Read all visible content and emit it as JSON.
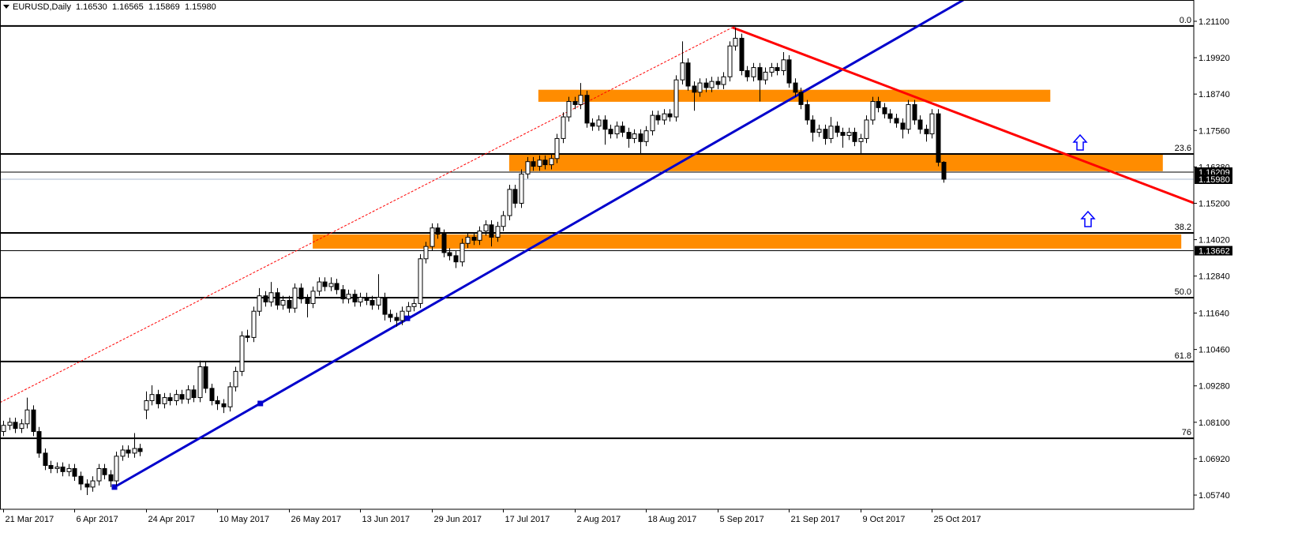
{
  "chart_data": {
    "type": "candlestick",
    "header": {
      "symbol": "EURUSD,Daily",
      "ohlc": [
        "1.16530",
        "1.16565",
        "1.15869",
        "1.15980"
      ]
    },
    "xlim": [
      -0.53,
      200
    ],
    "ylim": [
      1.0528,
      1.2179
    ],
    "xticks": [
      {
        "value": 0,
        "label": "21 Mar 2017"
      },
      {
        "value": 12,
        "label": "6 Apr 2017"
      },
      {
        "value": 24,
        "label": "24 Apr 2017"
      },
      {
        "value": 36,
        "label": "10 May 2017"
      },
      {
        "value": 48,
        "label": "26 May 2017"
      },
      {
        "value": 60,
        "label": "13 Jun 2017"
      },
      {
        "value": 72,
        "label": "29 Jun 2017"
      },
      {
        "value": 84,
        "label": "17 Jul 2017"
      },
      {
        "value": 96,
        "label": "2 Aug 2017"
      },
      {
        "value": 108,
        "label": "18 Aug 2017"
      },
      {
        "value": 120,
        "label": "5 Sep 2017"
      },
      {
        "value": 132,
        "label": "21 Sep 2017"
      },
      {
        "value": 144,
        "label": "9 Oct 2017"
      },
      {
        "value": 156,
        "label": "25 Oct 2017"
      }
    ],
    "yticks": [
      {
        "value": 1.211,
        "label": "1.21100"
      },
      {
        "value": 1.1992,
        "label": "1.19920"
      },
      {
        "value": 1.1874,
        "label": "1.18740"
      },
      {
        "value": 1.1756,
        "label": "1.17560"
      },
      {
        "value": 1.1638,
        "label": "1.16380"
      },
      {
        "value": 1.152,
        "label": "1.15200"
      },
      {
        "value": 1.1402,
        "label": "1.14020"
      },
      {
        "value": 1.1284,
        "label": "1.12840"
      },
      {
        "value": 1.1164,
        "label": "1.11640"
      },
      {
        "value": 1.1046,
        "label": "1.10460"
      },
      {
        "value": 1.0928,
        "label": "1.09280"
      },
      {
        "value": 1.081,
        "label": "1.08100"
      },
      {
        "value": 1.0692,
        "label": "1.06920"
      },
      {
        "value": 1.0574,
        "label": "1.05740"
      }
    ],
    "open": [
      1.078,
      1.08,
      1.081,
      1.079,
      1.0805,
      1.085,
      1.078,
      1.071,
      1.067,
      1.066,
      1.0665,
      1.065,
      1.066,
      1.0635,
      1.061,
      1.06,
      1.062,
      1.066,
      1.064,
      1.062,
      1.07,
      1.072,
      1.071,
      1.0725,
      1.085,
      1.088,
      1.09,
      1.087,
      1.089,
      1.088,
      1.09,
      1.0885,
      1.0915,
      1.089,
      1.099,
      1.092,
      1.088,
      1.087,
      1.086,
      1.0925,
      1.0975,
      1.109,
      1.1085,
      1.117,
      1.122,
      1.12,
      1.123,
      1.119,
      1.1205,
      1.118,
      1.1245,
      1.121,
      1.1195,
      1.1235,
      1.1265,
      1.125,
      1.126,
      1.124,
      1.121,
      1.1225,
      1.12,
      1.1215,
      1.1205,
      1.119,
      1.1215,
      1.116,
      1.115,
      1.114,
      1.117,
      1.1185,
      1.1195,
      1.134,
      1.138,
      1.144,
      1.142,
      1.136,
      1.135,
      1.133,
      1.139,
      1.141,
      1.14,
      1.143,
      1.145,
      1.141,
      1.1445,
      1.148,
      1.1565,
      1.152,
      1.1615,
      1.1655,
      1.164,
      1.166,
      1.1645,
      1.1665,
      1.173,
      1.18,
      1.185,
      1.184,
      1.187,
      1.178,
      1.177,
      1.179,
      1.176,
      1.1745,
      1.177,
      1.175,
      1.173,
      1.1745,
      1.172,
      1.1755,
      1.1805,
      1.179,
      1.181,
      1.18,
      1.192,
      1.1975,
      1.19,
      1.188,
      1.191,
      1.1895,
      1.1915,
      1.1905,
      1.193,
      1.203,
      1.2055,
      1.195,
      1.193,
      1.196,
      1.192,
      1.1945,
      1.196,
      1.195,
      1.1985,
      1.191,
      1.188,
      1.184,
      1.179,
      1.175,
      1.176,
      1.173,
      1.177,
      1.175,
      1.174,
      1.175,
      1.172,
      1.173,
      1.179,
      1.185,
      1.183,
      1.181,
      1.1795,
      1.178,
      1.176,
      1.184,
      1.179,
      1.176,
      1.1745,
      1.181,
      1.1653
    ],
    "high": [
      1.0815,
      1.0825,
      1.0825,
      1.082,
      1.089,
      1.0865,
      1.0795,
      1.0725,
      1.0685,
      1.068,
      1.068,
      1.0675,
      1.0675,
      1.065,
      1.0625,
      1.0635,
      1.0675,
      1.0675,
      1.0655,
      1.0715,
      1.0735,
      1.0735,
      1.0775,
      1.074,
      1.091,
      1.093,
      1.0915,
      1.0905,
      1.0905,
      1.0915,
      1.0915,
      1.093,
      1.093,
      1.101,
      1.1005,
      1.0935,
      1.0895,
      1.0885,
      1.094,
      1.099,
      1.1105,
      1.111,
      1.1185,
      1.1245,
      1.1235,
      1.1265,
      1.1245,
      1.122,
      1.122,
      1.126,
      1.126,
      1.1225,
      1.125,
      1.128,
      1.128,
      1.128,
      1.1275,
      1.1255,
      1.124,
      1.124,
      1.123,
      1.123,
      1.122,
      1.129,
      1.123,
      1.1175,
      1.1165,
      1.1185,
      1.12,
      1.121,
      1.1355,
      1.1395,
      1.1455,
      1.1455,
      1.1435,
      1.1375,
      1.1365,
      1.1405,
      1.1425,
      1.1425,
      1.1445,
      1.1465,
      1.1465,
      1.146,
      1.1495,
      1.158,
      1.158,
      1.163,
      1.167,
      1.167,
      1.1675,
      1.1675,
      1.168,
      1.1745,
      1.1815,
      1.1865,
      1.1865,
      1.191,
      1.1885,
      1.1795,
      1.1805,
      1.1805,
      1.1775,
      1.1785,
      1.1785,
      1.1765,
      1.176,
      1.176,
      1.177,
      1.182,
      1.182,
      1.1825,
      1.1825,
      1.1935,
      1.2045,
      1.199,
      1.1915,
      1.1925,
      1.1925,
      1.193,
      1.193,
      1.1945,
      1.2045,
      1.209,
      1.207,
      1.1965,
      1.1975,
      1.1975,
      1.196,
      1.1975,
      1.1975,
      1.201,
      1.2,
      1.1925,
      1.1895,
      1.1855,
      1.1805,
      1.1775,
      1.1775,
      1.18,
      1.1785,
      1.1765,
      1.1765,
      1.1765,
      1.1745,
      1.1805,
      1.1865,
      1.1865,
      1.1845,
      1.1825,
      1.181,
      1.1795,
      1.1855,
      1.1855,
      1.1805,
      1.1775,
      1.1825,
      1.1825,
      1.16565
    ],
    "low": [
      1.0765,
      1.0785,
      1.0775,
      1.0775,
      1.079,
      1.0765,
      1.0695,
      1.0655,
      1.0645,
      1.0645,
      1.0635,
      1.0635,
      1.062,
      1.059,
      1.0574,
      1.0585,
      1.0605,
      1.0625,
      1.06,
      1.0605,
      1.0685,
      1.0695,
      1.0695,
      1.07,
      1.082,
      1.0865,
      1.0855,
      1.0855,
      1.0865,
      1.0865,
      1.087,
      1.087,
      1.0875,
      1.0875,
      1.0905,
      1.0865,
      1.085,
      1.084,
      1.0845,
      1.091,
      1.096,
      1.107,
      1.107,
      1.1155,
      1.1185,
      1.1185,
      1.1175,
      1.1175,
      1.1165,
      1.1165,
      1.1195,
      1.115,
      1.118,
      1.122,
      1.1235,
      1.1235,
      1.1225,
      1.1195,
      1.1195,
      1.1185,
      1.1185,
      1.119,
      1.1175,
      1.1175,
      1.114,
      1.1135,
      1.112,
      1.1125,
      1.1155,
      1.117,
      1.118,
      1.1325,
      1.1365,
      1.1405,
      1.1345,
      1.1335,
      1.131,
      1.1315,
      1.1375,
      1.1385,
      1.1385,
      1.1415,
      1.138,
      1.1395,
      1.143,
      1.1465,
      1.1505,
      1.1505,
      1.16,
      1.1625,
      1.1625,
      1.163,
      1.163,
      1.165,
      1.1715,
      1.1785,
      1.1825,
      1.1825,
      1.1765,
      1.1755,
      1.1755,
      1.171,
      1.173,
      1.173,
      1.1735,
      1.17,
      1.1715,
      1.168,
      1.1705,
      1.174,
      1.1775,
      1.1775,
      1.1785,
      1.1785,
      1.1905,
      1.1885,
      1.182,
      1.1865,
      1.188,
      1.188,
      1.189,
      1.189,
      1.1915,
      1.2015,
      1.1935,
      1.1915,
      1.1915,
      1.185,
      1.1905,
      1.193,
      1.1935,
      1.1935,
      1.1895,
      1.1865,
      1.1825,
      1.1775,
      1.172,
      1.1735,
      1.171,
      1.1715,
      1.1735,
      1.17,
      1.1725,
      1.1705,
      1.168,
      1.1715,
      1.1775,
      1.1815,
      1.1795,
      1.178,
      1.1765,
      1.173,
      1.1745,
      1.1775,
      1.1745,
      1.172,
      1.173,
      1.164,
      1.15869
    ],
    "close": [
      1.08,
      1.081,
      1.079,
      1.0805,
      1.085,
      1.078,
      1.071,
      1.067,
      1.066,
      1.0665,
      1.065,
      1.066,
      1.0635,
      1.061,
      1.06,
      1.062,
      1.066,
      1.064,
      1.062,
      1.07,
      1.072,
      1.071,
      1.0725,
      1.0715,
      1.088,
      1.09,
      1.087,
      1.089,
      1.088,
      1.09,
      1.0885,
      1.0915,
      1.089,
      1.099,
      1.092,
      1.088,
      1.087,
      1.086,
      1.0925,
      1.0975,
      1.109,
      1.1085,
      1.117,
      1.122,
      1.12,
      1.123,
      1.119,
      1.1205,
      1.118,
      1.1245,
      1.121,
      1.1195,
      1.1235,
      1.1265,
      1.125,
      1.126,
      1.124,
      1.121,
      1.1225,
      1.12,
      1.1215,
      1.1205,
      1.119,
      1.1215,
      1.116,
      1.115,
      1.114,
      1.117,
      1.1185,
      1.1195,
      1.134,
      1.138,
      1.144,
      1.142,
      1.136,
      1.135,
      1.133,
      1.139,
      1.141,
      1.14,
      1.143,
      1.145,
      1.141,
      1.1445,
      1.148,
      1.1565,
      1.152,
      1.1615,
      1.1655,
      1.164,
      1.166,
      1.1645,
      1.1665,
      1.173,
      1.18,
      1.185,
      1.184,
      1.187,
      1.178,
      1.177,
      1.179,
      1.176,
      1.1745,
      1.177,
      1.175,
      1.173,
      1.1745,
      1.172,
      1.1755,
      1.1805,
      1.179,
      1.181,
      1.18,
      1.192,
      1.1975,
      1.19,
      1.188,
      1.191,
      1.1895,
      1.1915,
      1.1905,
      1.193,
      1.203,
      1.2055,
      1.195,
      1.193,
      1.196,
      1.192,
      1.1945,
      1.196,
      1.195,
      1.1985,
      1.191,
      1.188,
      1.184,
      1.179,
      1.175,
      1.176,
      1.173,
      1.177,
      1.175,
      1.174,
      1.175,
      1.172,
      1.173,
      1.179,
      1.185,
      1.183,
      1.181,
      1.1795,
      1.178,
      1.176,
      1.184,
      1.179,
      1.176,
      1.1745,
      1.181,
      1.1653,
      1.1598
    ],
    "up_color": "#ffffff",
    "down_color": "#000000",
    "zones": [
      {
        "color": "#ff8c00",
        "x": [
          89.9,
          175.9
        ],
        "y": [
          1.1849,
          1.1888
        ]
      },
      {
        "color": "#ff8c00",
        "x": [
          85.0,
          194.8
        ],
        "y": [
          1.1624,
          1.168
        ]
      },
      {
        "color": "#ff8c00",
        "x": [
          52.0,
          197.9
        ],
        "y": [
          1.1373,
          1.1419
        ]
      }
    ],
    "fib_levels": [
      {
        "value": 1.2095,
        "label": "0.0"
      },
      {
        "value": 1.168,
        "label": "23.6"
      },
      {
        "value": 1.1424,
        "label": "38.2"
      },
      {
        "value": 1.1214,
        "label": "50.0"
      },
      {
        "value": 1.1007,
        "label": "61.8"
      },
      {
        "value": 1.0758,
        "label": "76"
      }
    ],
    "price_levels": [
      {
        "value": 1.16209,
        "label": "1.16209",
        "color": "#000000"
      },
      {
        "value": 1.1598,
        "label": "1.15980",
        "color": "#a9b9d0"
      },
      {
        "value": 1.13662,
        "label": "1.13662",
        "color": "#000000"
      }
    ],
    "lines": [
      {
        "color": "#0000cc",
        "width": 3,
        "style": "solid",
        "x": [
          18.7,
          161.3
        ],
        "y": [
          1.06,
          1.2179
        ]
      },
      {
        "color": "#ff0000",
        "width": 3,
        "style": "solid",
        "x": [
          122.5,
          200
        ],
        "y": [
          1.209,
          1.1521
        ]
      },
      {
        "color": "#ff0000",
        "width": 1,
        "style": "dotted",
        "x": [
          -0.53,
          122.5
        ],
        "y": [
          1.0874,
          1.209
        ]
      }
    ],
    "points": {
      "color": "#0000cc",
      "x": [
        18.7,
        43.2,
        67.9
      ],
      "y": [
        1.06,
        1.0871,
        1.1147
      ]
    }
  }
}
